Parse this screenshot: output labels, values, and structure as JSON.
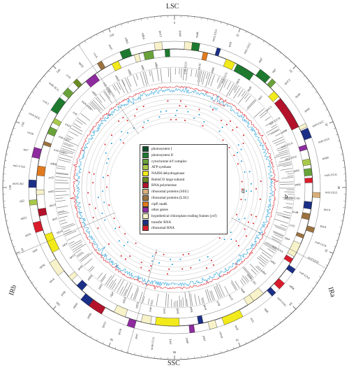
{
  "regions": {
    "lsc": "LSC",
    "ssc": "SSC",
    "ira": "IRa",
    "irb": "IRb"
  },
  "inner_letters": {
    "d": "d",
    "b": "b"
  },
  "tracks": {
    "gc_legend_1": "P_content",
    "gc_legend_2": "P_Diff"
  },
  "legend": [
    {
      "label": "photosystem I",
      "color": "#0d4d2a"
    },
    {
      "label": "photosystem II",
      "color": "#1d7a2e"
    },
    {
      "label": "cytochrome b/f complex",
      "color": "#6aa23a"
    },
    {
      "label": "ATP synthase",
      "color": "#a9c94a"
    },
    {
      "label": "NADH dehydrogenase",
      "color": "#f2ea1a"
    },
    {
      "label": "RubisCO large subunit",
      "color": "#6b8b23"
    },
    {
      "label": "RNA polymerase",
      "color": "#b3122a"
    },
    {
      "label": "ribosomal proteins (SSU)",
      "color": "#d9b07a"
    },
    {
      "label": "ribosomal proteins (LSU)",
      "color": "#9b7240"
    },
    {
      "label": "clpP, matK",
      "color": "#e07a1f"
    },
    {
      "label": "other genes",
      "color": "#8e2b9e"
    },
    {
      "label": "hypothetical chloroplast reading frames (ycf)",
      "color": "#f7f2c9"
    },
    {
      "label": "transfer RNA",
      "color": "#1b2f86"
    },
    {
      "label": "ribosomal RNA",
      "color": "#d91c2c"
    }
  ],
  "gene_labels": [
    "psbA",
    "trnK-UUU",
    "matK",
    "rps16",
    "trnQ-UUG",
    "psbK",
    "psbI",
    "trnS-GCU",
    "trnG-UCC",
    "atpA",
    "atpF",
    "atpH",
    "atpI",
    "rps2",
    "rpoC2",
    "rpoC1",
    "rpoB",
    "trnC-GCA",
    "petN",
    "psbM",
    "trnD-GUC",
    "trnY-GUA",
    "trnE-UUC",
    "trnT-GGU",
    "psbD",
    "psbC",
    "trnS-UGA",
    "psbZ",
    "trnG-GCC",
    "trnfM-CAU",
    "rps14",
    "psaB",
    "psaA",
    "ycf3",
    "trnS-GGA",
    "rps4",
    "trnT-UGU",
    "trnL-UAA",
    "trnF-GAA",
    "ndhJ",
    "ndhK",
    "ndhC",
    "trnV-UAC",
    "trnM-CAU",
    "atpE",
    "atpB",
    "rbcL",
    "accD",
    "psaI",
    "ycf4",
    "cemA",
    "petA",
    "psbJ",
    "psbL",
    "psbF",
    "psbE",
    "petL",
    "petG",
    "trnW-CCA",
    "trnP-UGG",
    "psaJ",
    "rpl33",
    "rps18",
    "rpl20",
    "rps12",
    "clpP",
    "psbB",
    "psbT",
    "psbN",
    "psbH",
    "petB",
    "petD",
    "rpoA",
    "rps11",
    "rpl36",
    "infA",
    "rps8",
    "rpl14",
    "rpl16",
    "rps3",
    "rpl22",
    "rps19",
    "rpl2",
    "rpl23",
    "trnI-CAU",
    "ycf2",
    "trnL-CAA",
    "ndhB",
    "rps7",
    "trnV-GAC",
    "rrn16",
    "trnI-GAU",
    "trnA-UGC",
    "rrn23",
    "rrn4.5",
    "rrn5",
    "trnR-ACG",
    "trnN-GUU",
    "ycf1",
    "ndhF",
    "rpl32",
    "trnL-UAG",
    "ccsA",
    "ndhD",
    "psaC",
    "ndhE",
    "ndhG",
    "ndhI",
    "ndhA",
    "ndhH",
    "rps15"
  ],
  "scale_ticks": [
    "0",
    "10",
    "20",
    "30",
    "40",
    "50",
    "60",
    "70",
    "80",
    "90",
    "100",
    "110",
    "120",
    "130",
    "140",
    "150"
  ]
}
